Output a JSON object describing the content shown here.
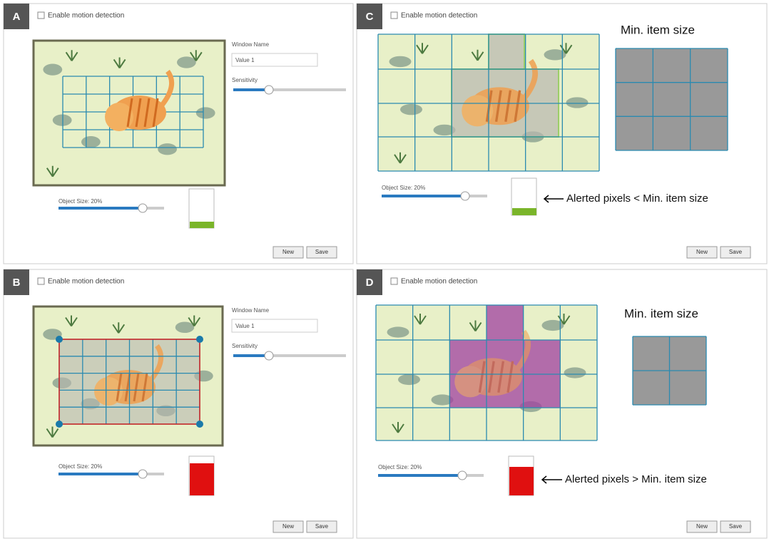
{
  "panels": [
    {
      "label": "A",
      "checkbox": "Enable motion detection",
      "window_name_label": "Window Name",
      "window_name_value": "Value 1",
      "sensitivity_label": "Sensitivity",
      "object_size_label": "Object Size: 20%",
      "buttons": [
        "New",
        "Save"
      ]
    },
    {
      "label": "C",
      "checkbox": "Enable motion detection",
      "object_size_label": "Object Size: 20%",
      "min_item_label": "Min. item size",
      "annotation": "Alerted pixels < Min. item size",
      "buttons": [
        "New",
        "Save"
      ]
    },
    {
      "label": "B",
      "checkbox": "Enable motion detection",
      "window_name_label": "Window Name",
      "window_name_value": "Value 1",
      "sensitivity_label": "Sensitivity",
      "object_size_label": "Object Size: 20%",
      "buttons": [
        "New",
        "Save"
      ]
    },
    {
      "label": "D",
      "checkbox": "Enable motion detection",
      "object_size_label": "Object Size: 20%",
      "min_item_label": "Min. item size",
      "annotation": "Alerted pixels > Min. item size",
      "buttons": [
        "New",
        "Save"
      ]
    }
  ]
}
